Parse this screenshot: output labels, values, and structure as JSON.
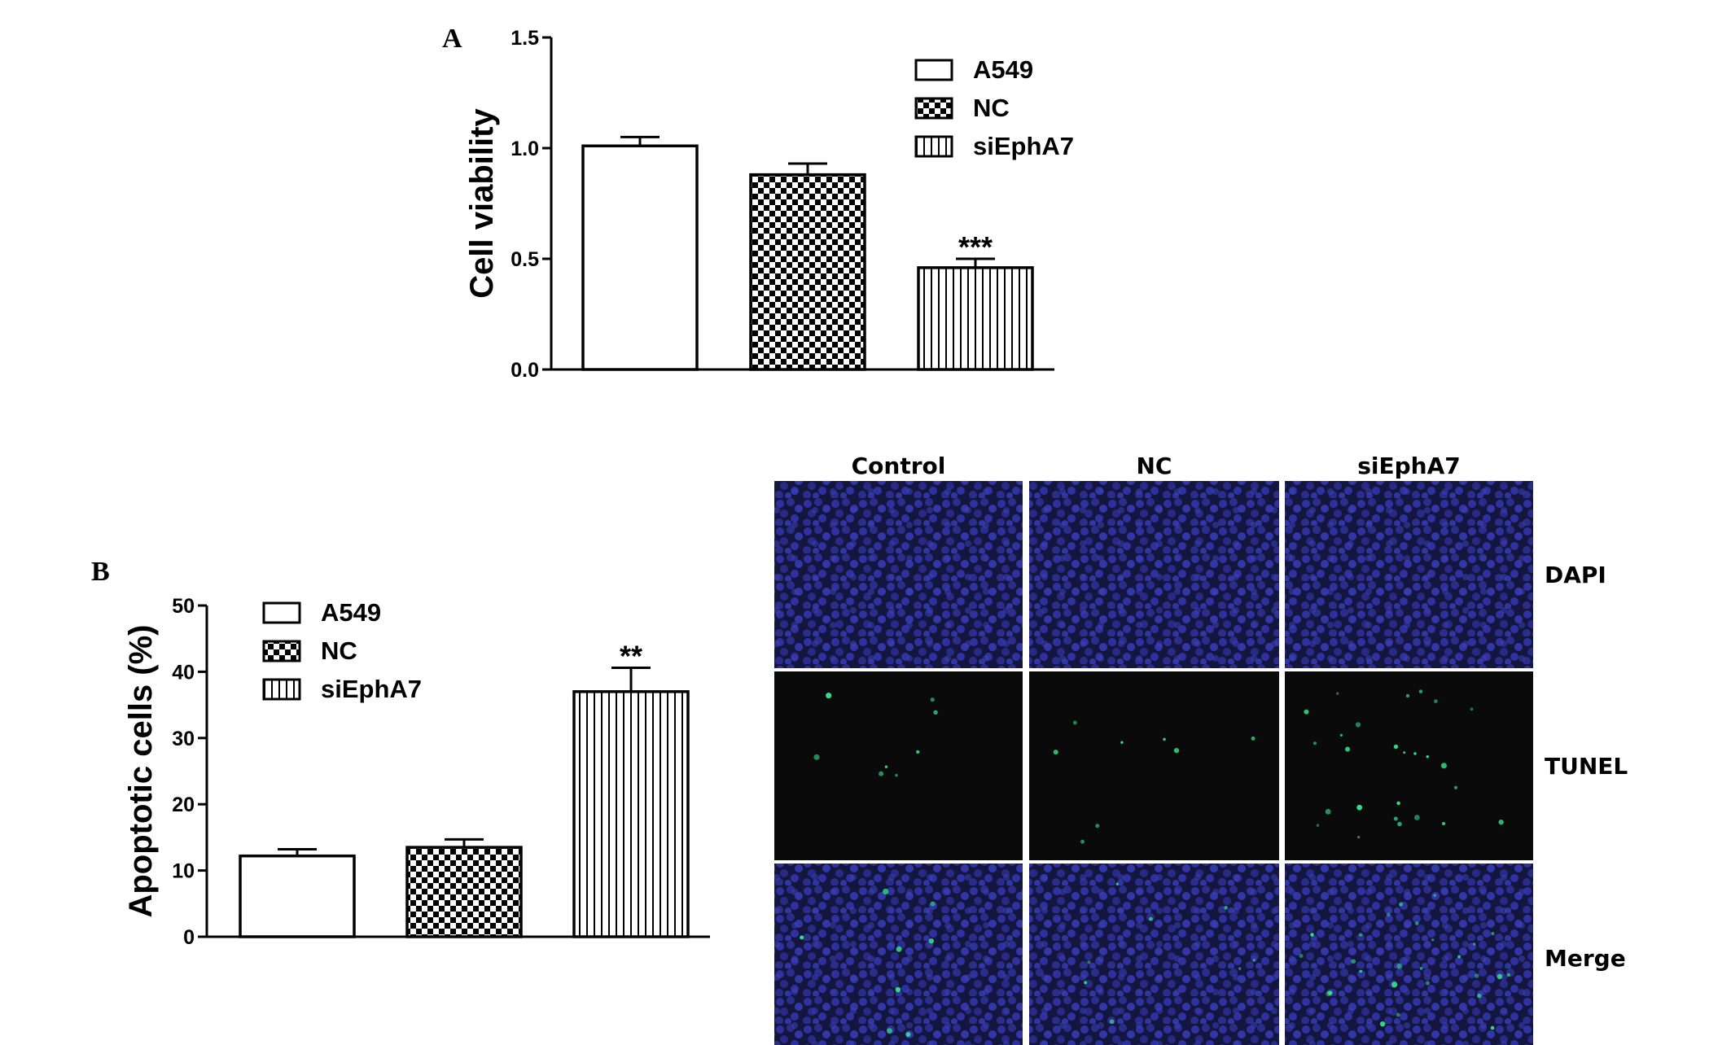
{
  "chart_data": [
    {
      "panel": "A",
      "type": "bar",
      "ylabel": "Cell viability",
      "ylim": [
        0,
        1.5
      ],
      "yticks": [
        "0.0",
        "0.5",
        "1.0",
        "1.5"
      ],
      "series": [
        {
          "name": "A549",
          "pattern": "open",
          "value": 1.01,
          "error": 0.04,
          "sig": ""
        },
        {
          "name": "NC",
          "pattern": "checker",
          "value": 0.88,
          "error": 0.05,
          "sig": ""
        },
        {
          "name": "siEphA7",
          "pattern": "vertical-lines",
          "value": 0.46,
          "error": 0.04,
          "sig": "***"
        }
      ],
      "legend_position": "top-right"
    },
    {
      "panel": "B",
      "type": "bar",
      "ylabel": "Apoptotic cells (%)",
      "ylim": [
        0,
        50
      ],
      "yticks": [
        "0",
        "10",
        "20",
        "30",
        "40",
        "50"
      ],
      "series": [
        {
          "name": "A549",
          "pattern": "open",
          "value": 12.2,
          "error": 1.0,
          "sig": ""
        },
        {
          "name": "NC",
          "pattern": "checker",
          "value": 13.5,
          "error": 1.2,
          "sig": ""
        },
        {
          "name": "siEphA7",
          "pattern": "vertical-lines",
          "value": 37,
          "error": 3.6,
          "sig": "**"
        }
      ],
      "legend_position": "top-left"
    }
  ],
  "micrographs": {
    "columns": [
      "Control",
      "NC",
      "siEphA7"
    ],
    "rows": [
      "DAPI",
      "TUNEL",
      "Merge"
    ],
    "colors": {
      "dapi": "#2a2d8c",
      "tunel_bg": "#0a0a0a",
      "tunel_dot": "#33e08a"
    }
  },
  "colors": {
    "ink": "#000000",
    "background": "#ffffff"
  }
}
